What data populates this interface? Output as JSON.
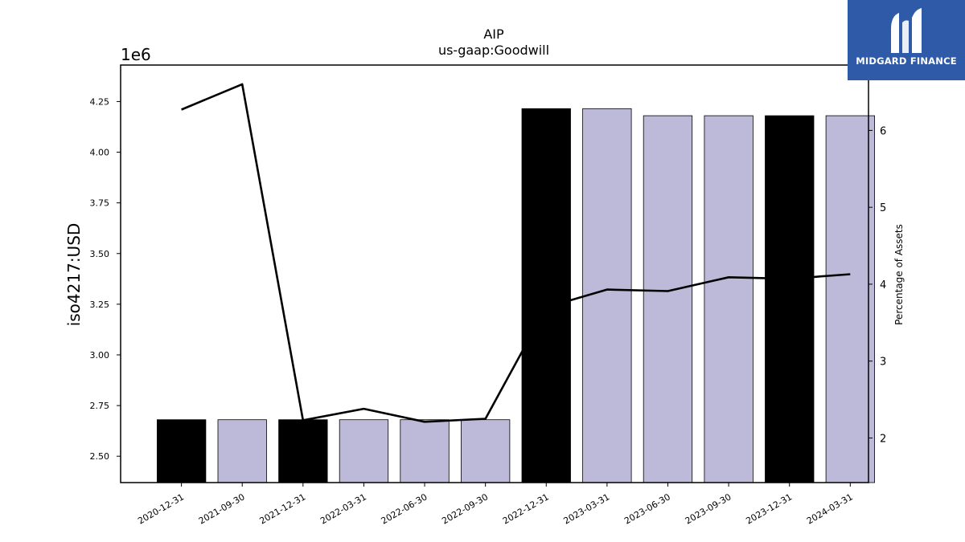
{
  "chart_data": {
    "type": "bar",
    "title": "AIP",
    "subtitle": "us-gaap:Goodwill",
    "ylabel": "iso4217:USD",
    "y_offset_label": "1e6",
    "y2label": "Percentage of Assets",
    "categories": [
      "2020-12-31",
      "2021-09-30",
      "2021-12-31",
      "2022-03-31",
      "2022-06-30",
      "2022-09-30",
      "2022-12-31",
      "2023-03-31",
      "2023-06-30",
      "2023-09-30",
      "2023-12-31",
      "2024-03-31"
    ],
    "series": [
      {
        "type": "bar",
        "values": [
          2.68,
          2.68,
          2.68,
          2.68,
          2.68,
          2.68,
          4.215,
          4.215,
          4.18,
          4.18,
          4.18,
          4.18
        ],
        "colors": [
          "#000000",
          "#bdbad9",
          "#000000",
          "#bdbad9",
          "#bdbad9",
          "#bdbad9",
          "#000000",
          "#bdbad9",
          "#bdbad9",
          "#bdbad9",
          "#000000",
          "#bdbad9"
        ]
      },
      {
        "type": "line",
        "axis": "right",
        "values": [
          6.27,
          6.6,
          2.23,
          2.38,
          2.21,
          2.25,
          3.7,
          3.93,
          3.91,
          4.09,
          4.07,
          4.13
        ]
      }
    ],
    "ylim": [
      2.37,
      4.43
    ],
    "y_ticks": [
      "2.50",
      "2.75",
      "3.00",
      "3.25",
      "3.50",
      "3.75",
      "4.00",
      "4.25"
    ],
    "y2lim": [
      1.42,
      6.85
    ],
    "y2_ticks": [
      "2",
      "3",
      "4",
      "5",
      "6"
    ],
    "grid": false
  },
  "logo": {
    "text": "MIDGARD FINANCE",
    "color": "#2f5aa8"
  }
}
